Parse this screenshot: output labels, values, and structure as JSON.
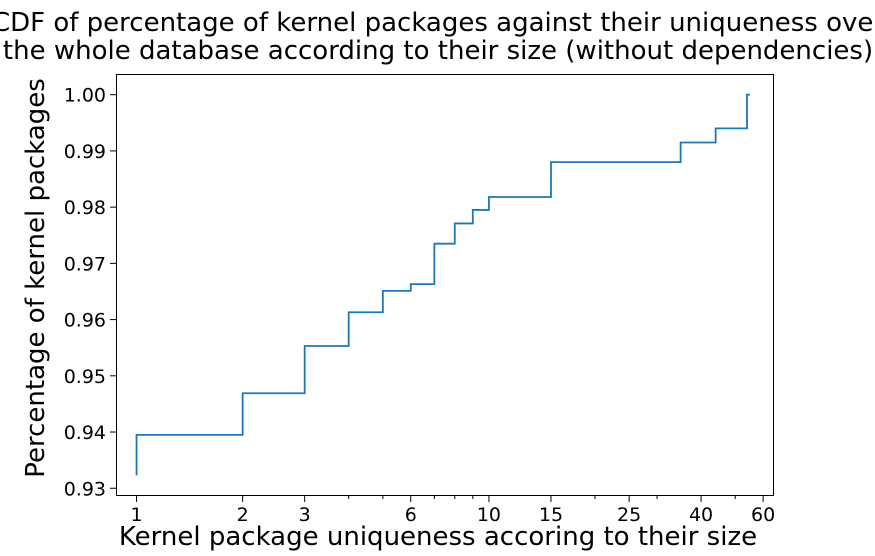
{
  "chart_data": {
    "type": "line",
    "title_lines": [
      "CDF of percentage of kernel packages against their uniqueness over",
      "the whole database according to their size (without dependencies)"
    ],
    "xlabel": "Kernel package uniqueness accoring to their size",
    "ylabel": "Percentage of kernel packages",
    "x_scale": "log",
    "xlim": [
      0.88,
      64
    ],
    "ylim": [
      0.9288,
      1.0035
    ],
    "x_major_ticks": [
      1,
      2,
      3,
      6,
      10,
      15,
      25,
      40,
      60
    ],
    "x_minor_ticks": [
      4,
      5,
      7,
      8,
      9,
      20,
      30,
      50
    ],
    "y_ticks": [
      0.93,
      0.94,
      0.95,
      0.96,
      0.97,
      0.98,
      0.99,
      1.0
    ],
    "y_tick_labels": [
      "0.93",
      "0.94",
      "0.95",
      "0.96",
      "0.97",
      "0.98",
      "0.99",
      "1.00"
    ],
    "grid": false,
    "series": [
      {
        "color": "#1f77b4",
        "step": "post",
        "x": [
          1,
          1,
          2,
          3,
          4,
          5,
          6,
          7,
          8,
          9,
          10,
          15,
          35,
          44,
          54,
          55
        ],
        "y": [
          0.9323,
          0.9395,
          0.9469,
          0.9553,
          0.9613,
          0.9651,
          0.9663,
          0.9735,
          0.9771,
          0.9795,
          0.9818,
          0.988,
          0.9915,
          0.994,
          1.0,
          1.0
        ]
      }
    ]
  }
}
